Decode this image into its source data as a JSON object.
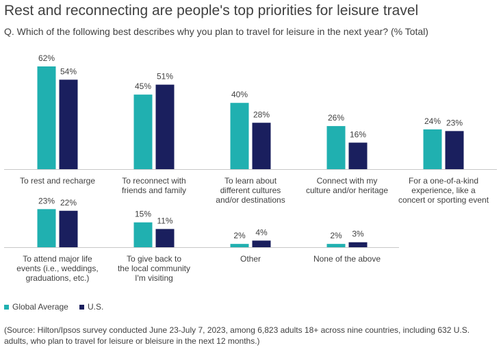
{
  "title": "Rest and reconnecting are people's top priorities for leisure travel",
  "subtitle": "Q. Which of the following best describes why you plan to travel for leisure in the next year? (% Total)",
  "colors": {
    "global": "#20B0B0",
    "us": "#1A1F5E",
    "axis": "#C8C8C8",
    "text": "#404040"
  },
  "chart_data": {
    "type": "bar",
    "unit": "%",
    "ylim": [
      0,
      62
    ],
    "grid": false,
    "legend_position": "bottom-left",
    "series": [
      {
        "name": "Global Average"
      },
      {
        "name": "U.S."
      }
    ],
    "rows": [
      [
        {
          "label": [
            "To rest and recharge"
          ],
          "values": [
            62,
            54
          ]
        },
        {
          "label": [
            "To reconnect with",
            "friends and family"
          ],
          "values": [
            45,
            51
          ]
        },
        {
          "label": [
            "To learn about",
            "different cultures",
            "and/or destinations"
          ],
          "values": [
            40,
            28
          ]
        },
        {
          "label": [
            "Connect with my",
            "culture and/or heritage"
          ],
          "values": [
            26,
            16
          ]
        },
        {
          "label": [
            "For a one-of-a-kind",
            "experience, like a",
            "concert or sporting event"
          ],
          "values": [
            24,
            23
          ]
        }
      ],
      [
        {
          "label": [
            "To attend major life",
            "events (i.e., weddings,",
            "graduations, etc.)"
          ],
          "values": [
            23,
            22
          ]
        },
        {
          "label": [
            "To give  back to",
            "the local community",
            "I'm visiting"
          ],
          "values": [
            15,
            11
          ]
        },
        {
          "label": [
            "Other"
          ],
          "values": [
            2,
            4
          ]
        },
        {
          "label": [
            "None of the above"
          ],
          "values": [
            2,
            3
          ]
        }
      ]
    ]
  },
  "legend": [
    {
      "label": "Global Average",
      "color": "#20B0B0"
    },
    {
      "label": "U.S.",
      "color": "#1A1F5E"
    }
  ],
  "source": "(Source: Hilton/Ipsos survey conducted June 23-July 7, 2023, among 6,823 adults 18+ across nine countries, including 632 U.S. adults, who plan to travel for leisure or bleisure in the next 12 months.)"
}
